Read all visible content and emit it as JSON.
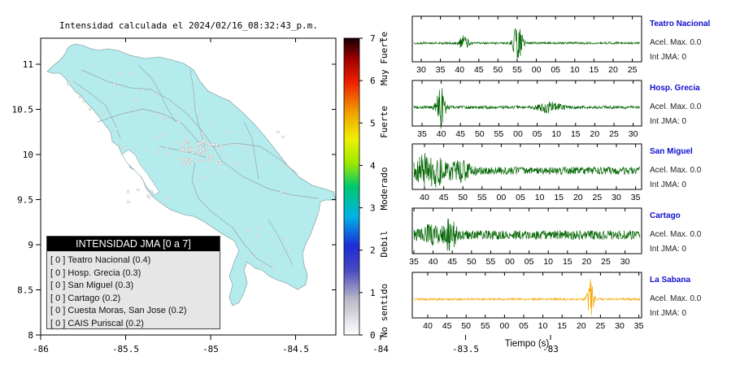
{
  "header": {
    "title": "Intensidad calculada el 2024/02/16_08:32:43_p.m."
  },
  "map": {
    "x_ticks": [
      "-86",
      "-85.5",
      "-85",
      "-84.5",
      "-84",
      "-83.5",
      "-83"
    ],
    "y_ticks": [
      "11",
      "10.5",
      "10",
      "9.5",
      "9",
      "8.5",
      "8"
    ],
    "land_color": "#b4ecee"
  },
  "colorbar": {
    "ticks": [
      "0",
      "1",
      "2",
      "3",
      "4",
      "5",
      "6",
      "7"
    ],
    "labels": [
      "No sentido",
      "Debil",
      "Moderado",
      "Fuerte",
      "Muy Fuerte"
    ]
  },
  "legend": {
    "title": "INTENSIDAD JMA [0 a 7]",
    "items": [
      {
        "level": "[ 0 ]",
        "name": "Teatro Nacional (0.4)"
      },
      {
        "level": "[ 0 ]",
        "name": "Hosp. Grecia (0.3)"
      },
      {
        "level": "[ 0 ]",
        "name": "San Miguel (0.3)"
      },
      {
        "level": "[ 0 ]",
        "name": "Cartago (0.2)"
      },
      {
        "level": "[ 0 ]",
        "name": "Cuesta Moras, San Jose (0.2)"
      },
      {
        "level": "[ 0 ]",
        "name": "CAIS Puriscal (0.2)"
      }
    ]
  },
  "waveforms": {
    "xlabel": "Tiempo (s)",
    "panels": [
      {
        "name": "Teatro Nacional",
        "accel": "Acel. Max. 0.0",
        "jma": "Int JMA: 0",
        "color": "#006400",
        "ticks": [
          "30",
          "35",
          "40",
          "45",
          "50",
          "55",
          "00",
          "05",
          "10",
          "15",
          "20",
          "25"
        ]
      },
      {
        "name": "Hosp. Grecia",
        "accel": "Acel. Max. 0.0",
        "jma": "Int JMA: 0",
        "color": "#006400",
        "ticks": [
          "35",
          "40",
          "45",
          "50",
          "55",
          "00",
          "05",
          "10",
          "15",
          "20",
          "25",
          "30"
        ]
      },
      {
        "name": "San Miguel",
        "accel": "Acel. Max. 0.0",
        "jma": "Int JMA: 0",
        "color": "#006400",
        "ticks": [
          "40",
          "45",
          "50",
          "55",
          "00",
          "05",
          "10",
          "15",
          "20",
          "25",
          "30",
          "35"
        ]
      },
      {
        "name": "Cartago",
        "accel": "Acel. Max. 0.0",
        "jma": "Int JMA: 0",
        "color": "#006400",
        "ticks": [
          "35",
          "40",
          "45",
          "50",
          "55",
          "00",
          "05",
          "10",
          "15",
          "20",
          "25",
          "30"
        ]
      },
      {
        "name": "La Sabana",
        "accel": "Acel. Max. 0.0",
        "jma": "Int JMA: 0",
        "color": "#f5a800",
        "ticks": [
          "40",
          "45",
          "50",
          "55",
          "00",
          "05",
          "10",
          "15",
          "20",
          "25",
          "30",
          "35"
        ]
      }
    ]
  },
  "chart_data": [
    {
      "type": "heatmap",
      "title": "Intensidad calculada el 2024/02/16_08:32:43_p.m.",
      "xlim": [
        -86,
        -82.6
      ],
      "ylim": [
        8,
        11.3
      ],
      "colorbar_range": [
        0,
        7
      ],
      "colorbar_categories": [
        "No sentido",
        "Debil",
        "Moderado",
        "Fuerte",
        "Muy Fuerte"
      ],
      "stations": [
        {
          "name": "Teatro Nacional",
          "intensity": 0.4,
          "jma": 0
        },
        {
          "name": "Hosp. Grecia",
          "intensity": 0.3,
          "jma": 0
        },
        {
          "name": "San Miguel",
          "intensity": 0.3,
          "jma": 0
        },
        {
          "name": "Cartago",
          "intensity": 0.2,
          "jma": 0
        },
        {
          "name": "Cuesta Moras, San Jose",
          "intensity": 0.2,
          "jma": 0
        },
        {
          "name": "CAIS Puriscal",
          "intensity": 0.2,
          "jma": 0
        }
      ]
    },
    {
      "type": "line",
      "xlabel": "Tiempo (s)",
      "series": [
        {
          "name": "Teatro Nacional",
          "peak_time_label": "55",
          "accel_max": 0.0
        },
        {
          "name": "Hosp. Grecia",
          "peak_time_label": "40",
          "accel_max": 0.0
        },
        {
          "name": "San Miguel",
          "peak_time_label": "43",
          "accel_max": 0.0
        },
        {
          "name": "Cartago",
          "peak_time_label": "45",
          "accel_max": 0.0
        },
        {
          "name": "La Sabana",
          "peak_time_label": "22",
          "accel_max": 0.0
        }
      ]
    }
  ]
}
